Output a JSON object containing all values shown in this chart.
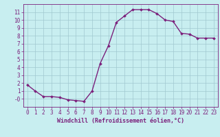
{
  "x": [
    0,
    1,
    2,
    3,
    4,
    5,
    6,
    7,
    8,
    9,
    10,
    11,
    12,
    13,
    14,
    15,
    16,
    17,
    18,
    19,
    20,
    21,
    22,
    23
  ],
  "y": [
    1.8,
    1.0,
    0.3,
    0.3,
    0.2,
    -0.1,
    -0.2,
    -0.3,
    1.0,
    4.5,
    6.7,
    9.7,
    10.5,
    11.3,
    11.3,
    11.3,
    10.8,
    10.0,
    9.8,
    8.3,
    8.2,
    7.7,
    7.7,
    7.7
  ],
  "line_color": "#7b1f7b",
  "marker": "D",
  "marker_size": 2.0,
  "bg_color": "#c8eef0",
  "grid_color": "#a0c8d0",
  "xlabel": "Windchill (Refroidissement éolien,°C)",
  "xlim": [
    -0.5,
    23.5
  ],
  "ylim": [
    -1.0,
    12.0
  ],
  "xticks": [
    0,
    1,
    2,
    3,
    4,
    5,
    6,
    7,
    8,
    9,
    10,
    11,
    12,
    13,
    14,
    15,
    16,
    17,
    18,
    19,
    20,
    21,
    22,
    23
  ],
  "yticks": [
    0,
    1,
    2,
    3,
    4,
    5,
    6,
    7,
    8,
    9,
    10,
    11
  ],
  "ytick_labels": [
    "-0",
    "1",
    "2",
    "3",
    "4",
    "5",
    "6",
    "7",
    "8",
    "9",
    "10",
    "11"
  ],
  "line_width": 1.0,
  "xlabel_fontsize": 6.0,
  "tick_fontsize": 5.5
}
